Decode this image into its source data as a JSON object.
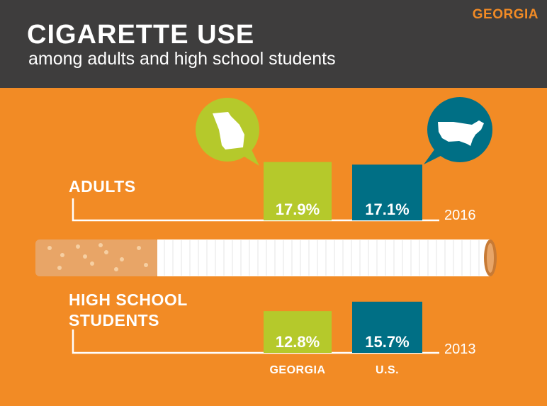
{
  "header": {
    "state_tag": "GEORGIA",
    "title": "CIGARETTE USE",
    "subtitle": "among adults and high school students"
  },
  "colors": {
    "background": "#f28b25",
    "header": "#3e3d3d",
    "georgia": "#b5c92b",
    "us": "#006f85",
    "accent": "#f28b25"
  },
  "icons": {
    "georgia": "georgia-map-icon",
    "us": "us-map-icon"
  },
  "chart_data": {
    "type": "bar",
    "categories": [
      "GEORGIA",
      "U.S."
    ],
    "groups": [
      {
        "label": [
          "ADULTS"
        ],
        "year": "2016",
        "values": [
          17.9,
          17.1
        ],
        "value_labels": [
          "17.9%",
          "17.1%"
        ]
      },
      {
        "label": [
          "HIGH SCHOOL",
          "STUDENTS"
        ],
        "year": "2013",
        "values": [
          12.8,
          15.7
        ],
        "value_labels": [
          "12.8%",
          "15.7%"
        ]
      }
    ]
  }
}
